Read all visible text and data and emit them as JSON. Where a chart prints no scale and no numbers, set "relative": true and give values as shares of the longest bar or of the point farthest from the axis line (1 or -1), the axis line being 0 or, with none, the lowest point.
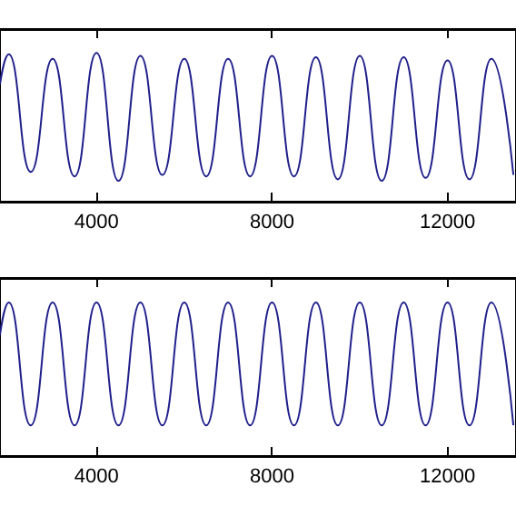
{
  "chart_data": [
    {
      "type": "line",
      "relative": true,
      "tick_labels": "x",
      "xlim": [
        1800,
        13560
      ],
      "xticks": [
        4000,
        8000,
        12000
      ],
      "x": [
        1800,
        2000,
        2500,
        3000,
        3500,
        4000,
        4500,
        5000,
        5500,
        6000,
        6500,
        7000,
        7500,
        8000,
        8500,
        9000,
        9500,
        10000,
        10500,
        11000,
        11500,
        12000,
        12500,
        13000,
        13500
      ],
      "series": [
        {
          "color": "#20208c",
          "values": [
            0.79,
            0.99,
            0.2,
            0.96,
            0.17,
            1.0,
            0.14,
            0.98,
            0.18,
            0.96,
            0.17,
            0.96,
            0.17,
            0.98,
            0.17,
            0.97,
            0.15,
            0.98,
            0.14,
            0.97,
            0.16,
            0.95,
            0.15,
            0.96,
            0.18
          ]
        }
      ]
    },
    {
      "type": "line",
      "relative": true,
      "tick_labels": "x",
      "xlim": [
        1800,
        13560
      ],
      "xticks": [
        4000,
        8000,
        12000
      ],
      "x": [
        1800,
        2000,
        2500,
        3000,
        3500,
        4000,
        4500,
        5000,
        5500,
        6000,
        6500,
        7000,
        7500,
        8000,
        8500,
        9000,
        9500,
        10000,
        10500,
        11000,
        11500,
        12000,
        12500,
        13000,
        13500
      ],
      "series": [
        {
          "color": "#20208c",
          "values": [
            0.79,
            1.0,
            0.2,
            1.0,
            0.2,
            1.0,
            0.2,
            1.0,
            0.2,
            1.0,
            0.2,
            1.0,
            0.2,
            1.0,
            0.2,
            1.0,
            0.2,
            1.0,
            0.2,
            1.0,
            0.2,
            1.0,
            0.2,
            1.0,
            0.2
          ]
        }
      ]
    }
  ]
}
